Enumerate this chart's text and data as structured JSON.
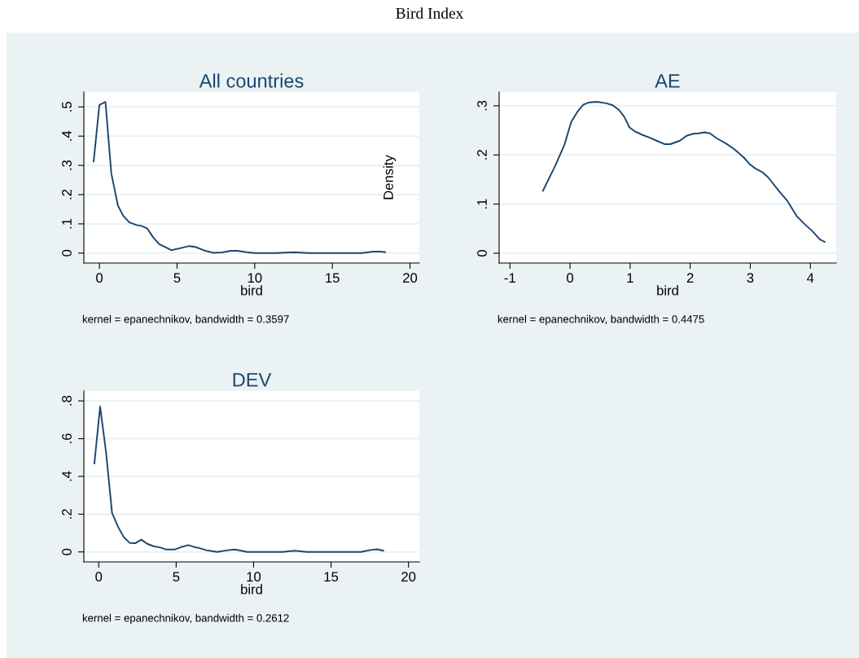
{
  "chart_data": [
    {
      "type": "line",
      "title": "All countries",
      "xlabel": "bird",
      "ylabel": "Density",
      "annotations": [
        "Bird Index",
        "kernel = epanechnikov, bandwidth = 0.3597"
      ],
      "x": [
        -0.37,
        0,
        0.39,
        0.77,
        1.19,
        1.53,
        1.93,
        2.4,
        2.7,
        3.07,
        3.46,
        3.84,
        4.63,
        5.3,
        5.77,
        6.18,
        6.7,
        7.3,
        7.9,
        8.46,
        8.9,
        9.5,
        10.0,
        11.4,
        12.5,
        13.5,
        16.9,
        17.6,
        18.1,
        18.4
      ],
      "series": [
        {
          "color": "#1a476f",
          "values": [
            0.314,
            0.507,
            0.517,
            0.272,
            0.163,
            0.128,
            0.105,
            0.096,
            0.093,
            0.085,
            0.054,
            0.031,
            0.01,
            0.018,
            0.024,
            0.021,
            0.01,
            0.001,
            0.002,
            0.008,
            0.008,
            0.003,
            0,
            0,
            0.003,
            0,
            0,
            0.005,
            0.005,
            0.003
          ]
        }
      ],
      "xlim": [
        -1,
        20.6
      ],
      "ylim": [
        -0.034,
        0.551
      ],
      "xticks": [
        0,
        5,
        10,
        15,
        20
      ],
      "yticks": [
        0,
        {
          "value": 0.1,
          "label": ".1"
        },
        {
          "value": 0.2,
          "label": ".2"
        },
        {
          "value": 0.3,
          "label": ".3"
        },
        {
          "value": 0.4,
          "label": ".4"
        },
        {
          "value": 0.5,
          "label": ".5"
        }
      ],
      "grid": "y",
      "marker": "none",
      "line_style": "solid"
    },
    {
      "type": "line",
      "title": "AE",
      "xlabel": "bird",
      "annotations": [
        "kernel = epanechnikov, bandwidth = 0.4475"
      ],
      "x": [
        -0.45,
        -0.25,
        -0.095,
        0.02,
        0.13,
        0.22,
        0.32,
        0.45,
        0.61,
        0.71,
        0.81,
        0.9,
        0.99,
        1.08,
        1.2,
        1.33,
        1.44,
        1.57,
        1.67,
        1.83,
        1.94,
        2.05,
        2.14,
        2.24,
        2.33,
        2.44,
        2.6,
        2.73,
        2.89,
        3.0,
        3.09,
        3.21,
        3.3,
        3.48,
        3.62,
        3.77,
        3.89,
        4.04,
        4.16,
        4.24
      ],
      "series": [
        {
          "color": "#1a476f",
          "values": [
            0.127,
            0.177,
            0.22,
            0.267,
            0.289,
            0.302,
            0.307,
            0.308,
            0.305,
            0.301,
            0.292,
            0.278,
            0.256,
            0.248,
            0.241,
            0.235,
            0.229,
            0.222,
            0.222,
            0.229,
            0.239,
            0.243,
            0.244,
            0.246,
            0.244,
            0.234,
            0.223,
            0.212,
            0.195,
            0.18,
            0.172,
            0.164,
            0.154,
            0.126,
            0.106,
            0.076,
            0.061,
            0.044,
            0.028,
            0.023
          ]
        }
      ],
      "xlim": [
        -1.18,
        4.43
      ],
      "ylim": [
        -0.02,
        0.328
      ],
      "xticks": [
        -1,
        0,
        1,
        2,
        3,
        4
      ],
      "yticks": [
        0,
        {
          "value": 0.1,
          "label": ".1"
        },
        {
          "value": 0.2,
          "label": ".2"
        },
        {
          "value": 0.3,
          "label": ".3"
        }
      ],
      "grid": "y",
      "marker": "none",
      "line_style": "solid"
    },
    {
      "type": "line",
      "title": "DEV",
      "xlabel": "bird",
      "annotations": [
        "kernel = epanechnikov, bandwidth = 0.2612"
      ],
      "x": [
        -0.28,
        0.09,
        0.47,
        0.86,
        1.26,
        1.61,
        2.01,
        2.36,
        2.75,
        3.13,
        3.54,
        3.98,
        4.33,
        4.94,
        5.38,
        5.78,
        6.16,
        6.51,
        6.95,
        7.65,
        8.35,
        8.79,
        9.58,
        11.86,
        12.64,
        13.43,
        16.93,
        17.55,
        17.99,
        18.37
      ],
      "series": [
        {
          "color": "#1a476f",
          "values": [
            0.469,
            0.77,
            0.53,
            0.206,
            0.131,
            0.079,
            0.047,
            0.046,
            0.065,
            0.043,
            0.03,
            0.023,
            0.013,
            0.013,
            0.027,
            0.036,
            0.026,
            0.02,
            0.009,
            0,
            0.009,
            0.013,
            0,
            0,
            0.006,
            0,
            0,
            0.01,
            0.014,
            0.006
          ]
        }
      ],
      "xlim": [
        -0.96,
        20.7
      ],
      "ylim": [
        -0.053,
        0.853
      ],
      "xticks": [
        0,
        5,
        10,
        15,
        20
      ],
      "yticks": [
        0,
        {
          "value": 0.2,
          "label": ".2"
        },
        {
          "value": 0.4,
          "label": ".4"
        },
        {
          "value": 0.6,
          "label": ".6"
        },
        {
          "value": 0.8,
          "label": ".8"
        }
      ],
      "grid": "y",
      "marker": "none",
      "line_style": "solid"
    }
  ]
}
